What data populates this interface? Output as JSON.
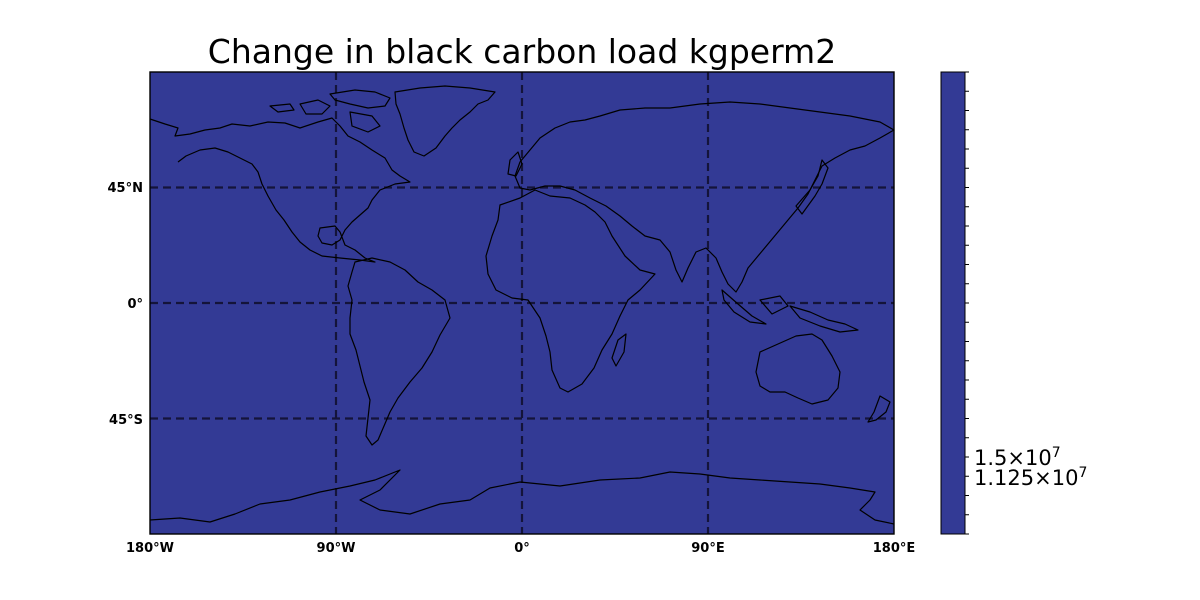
{
  "map": {
    "title": "Change in black carbon load kgperm2",
    "projection": "PlateCarree",
    "fill_color": "#333a95",
    "coastline_color": "#000000",
    "gridline_style": "dashed",
    "lon_labels": [
      "180°W",
      "90°W",
      "0°",
      "90°E",
      "180°E"
    ],
    "lat_labels": [
      "45°N",
      "0°",
      "45°S"
    ],
    "lon_ticks": [
      -180,
      -90,
      0,
      90,
      180
    ],
    "lat_ticks": [
      45,
      0,
      -45
    ],
    "lon_range": [
      -180,
      180
    ],
    "lat_range": [
      -90,
      90
    ]
  },
  "colorbar": {
    "color": "#333a95",
    "labels": [
      {
        "mantissa": "1.5",
        "exponent": "7"
      },
      {
        "mantissa": "1.125",
        "exponent": "7"
      }
    ]
  }
}
